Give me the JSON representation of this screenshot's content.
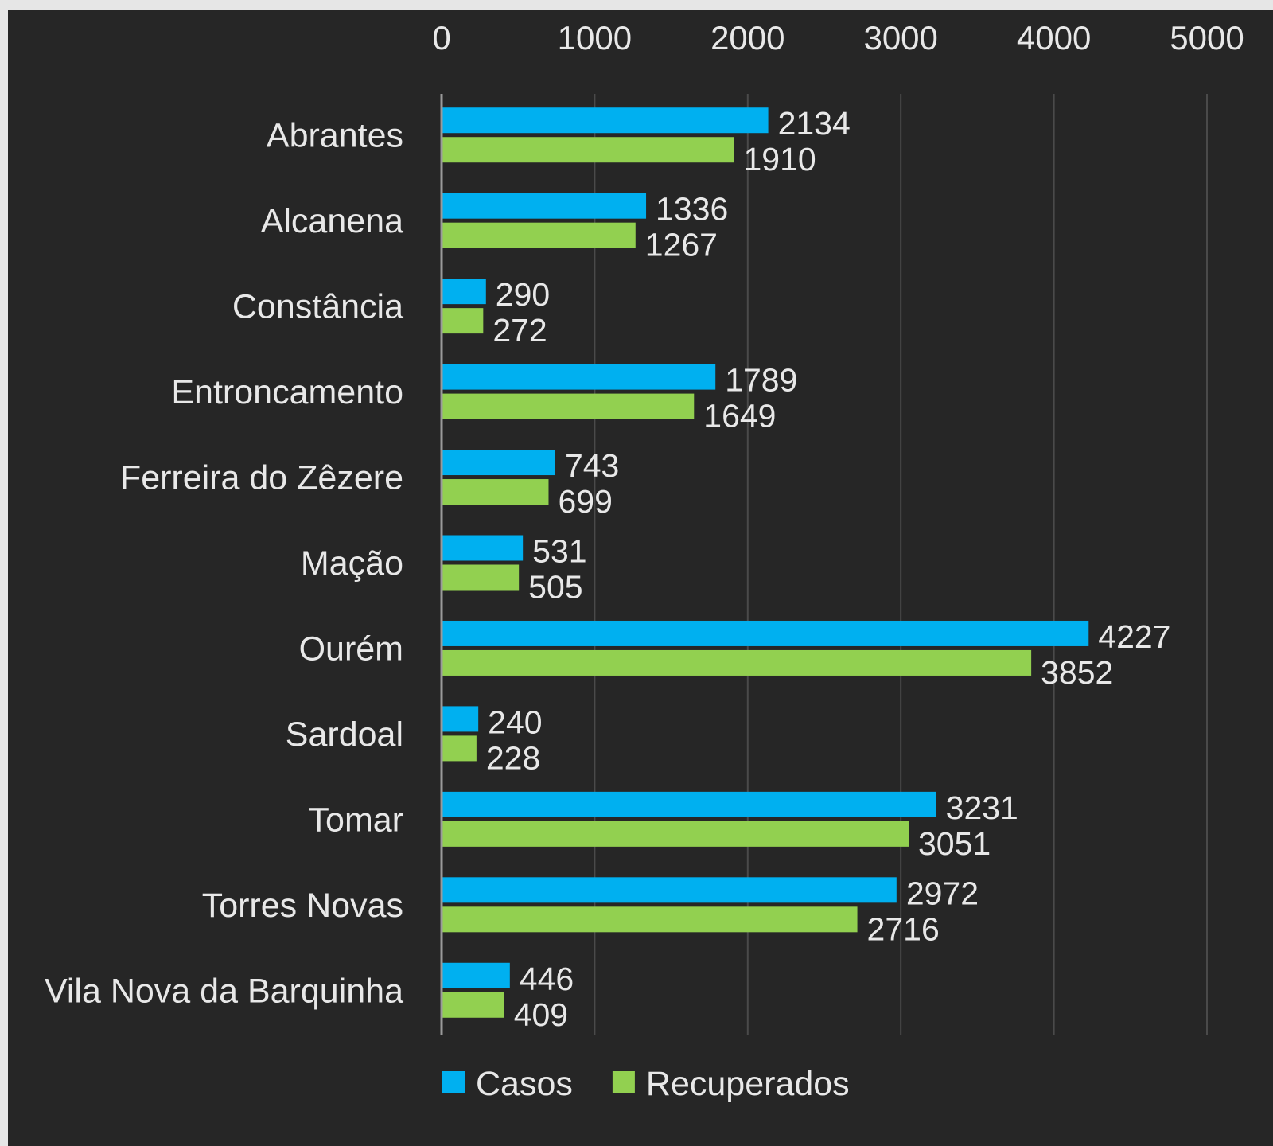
{
  "chart_data": {
    "type": "bar",
    "orientation": "horizontal",
    "categories": [
      "Abrantes",
      "Alcanena",
      "Constância",
      "Entroncamento",
      "Ferreira do Zêzere",
      "Mação",
      "Ourém",
      "Sardoal",
      "Tomar",
      "Torres Novas",
      "Vila Nova da Barquinha"
    ],
    "series": [
      {
        "name": "Casos",
        "color": "#00b0f0",
        "values": [
          2134,
          1336,
          290,
          1789,
          743,
          531,
          4227,
          240,
          3231,
          2972,
          446
        ]
      },
      {
        "name": "Recuperados",
        "color": "#92d050",
        "values": [
          1910,
          1267,
          272,
          1649,
          699,
          505,
          3852,
          228,
          3051,
          2716,
          409
        ]
      }
    ],
    "xlim": [
      0,
      5000
    ],
    "xticks": [
      0,
      1000,
      2000,
      3000,
      4000,
      5000
    ],
    "x_axis_position": "top",
    "gridlines": true,
    "data_labels": true,
    "legend_position": "bottom",
    "background_color": "#262626",
    "title": "",
    "xlabel": "",
    "ylabel": ""
  }
}
